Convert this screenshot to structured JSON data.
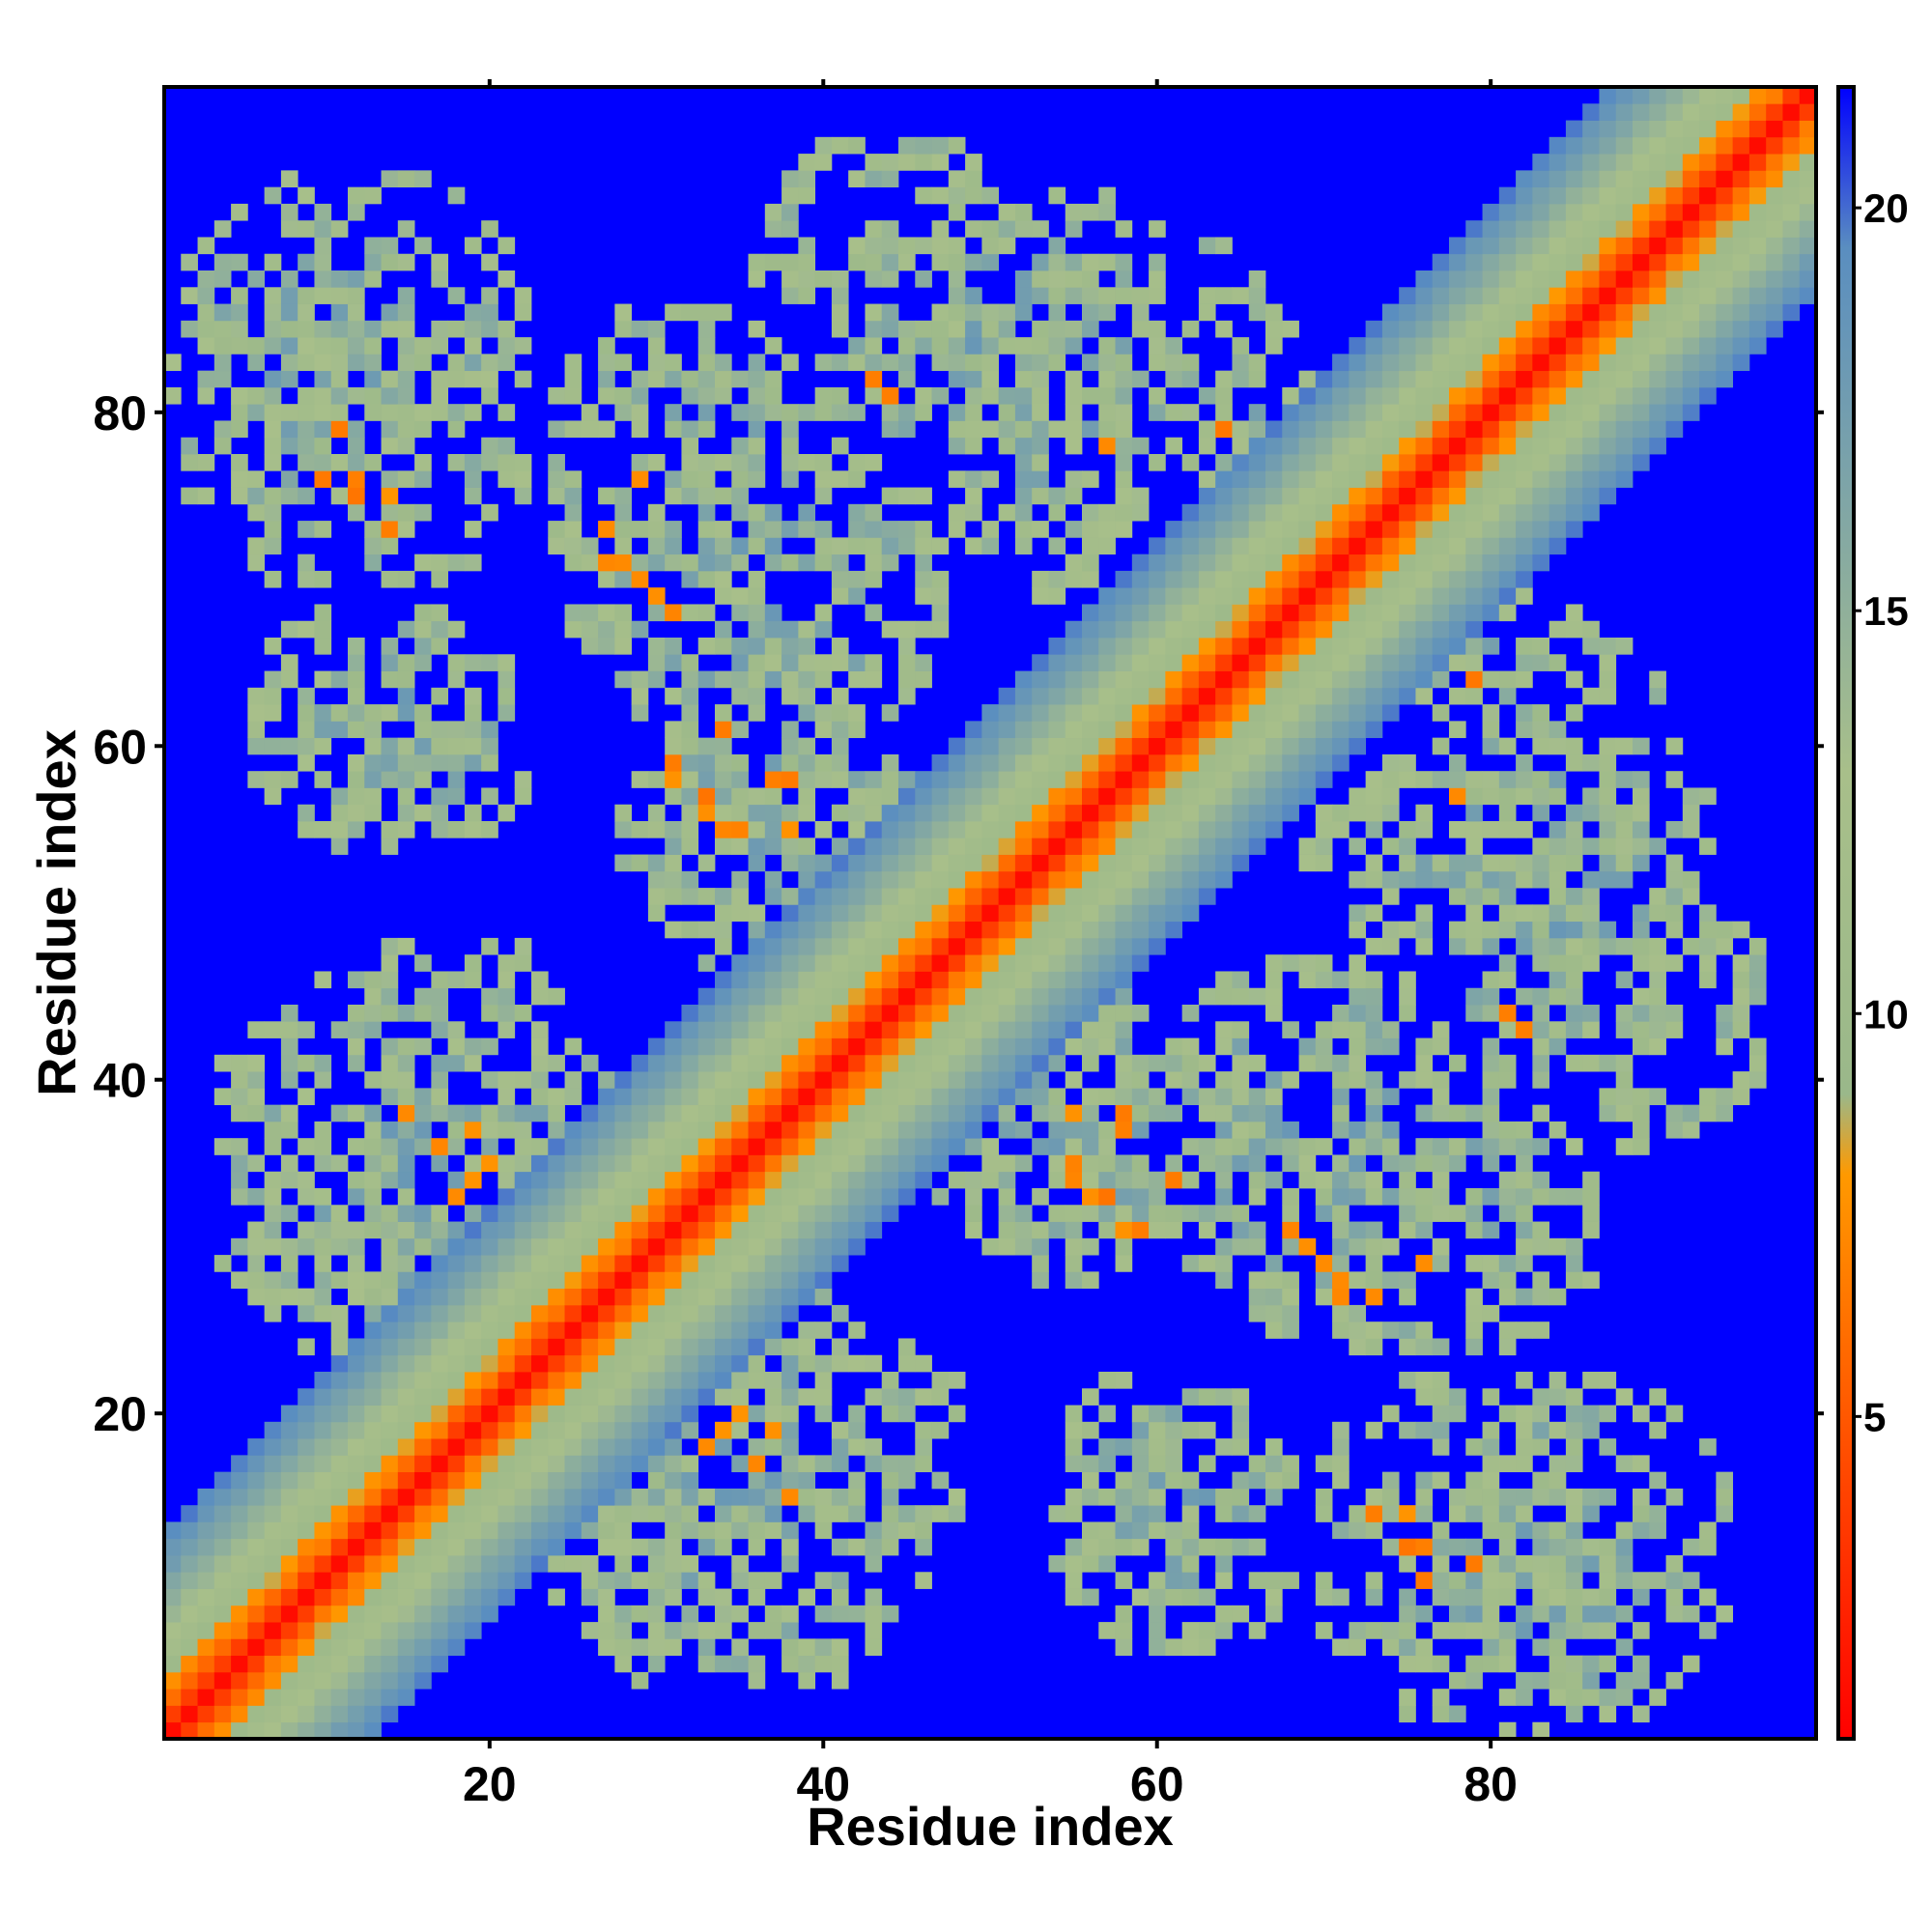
{
  "chart_data": {
    "type": "heatmap",
    "title": "",
    "xlabel": "Residue index",
    "ylabel": "Residue index",
    "n_residues": 99,
    "xlim": [
      1,
      99
    ],
    "ylim": [
      1,
      99
    ],
    "x_ticks": [
      20,
      40,
      60,
      80
    ],
    "y_ticks": [
      20,
      40,
      60,
      80
    ],
    "grid": false,
    "legend": "colorbar-right",
    "colorbar": {
      "range": [
        1,
        21.5
      ],
      "ticks": [
        5,
        10,
        15,
        20
      ],
      "stops": [
        {
          "value": 1,
          "color": "#ff0000"
        },
        {
          "value": 8,
          "color": "#ff9900"
        },
        {
          "value": 9,
          "color": "#9ab88a"
        },
        {
          "value": 13,
          "color": "#a8bf8a"
        },
        {
          "value": 19.5,
          "color": "#5a8ec0"
        },
        {
          "value": 21.5,
          "color": "#0000ff"
        }
      ],
      "background_color": "#0000ff"
    },
    "features": {
      "diagonal_band_halfwidth": 12,
      "clusters": [
        {
          "x": [
            1,
            18
          ],
          "y": [
            72,
            92
          ]
        },
        {
          "x": [
            26,
            47
          ],
          "y": [
            60,
            78
          ]
        },
        {
          "x": [
            40,
            62
          ],
          "y": [
            72,
            93
          ]
        },
        {
          "x": [
            57,
            70
          ],
          "y": [
            70,
            84
          ]
        },
        {
          "x": [
            28,
            48
          ],
          "y": [
            48,
            64
          ]
        },
        {
          "x": [
            4,
            28
          ],
          "y": [
            24,
            46
          ]
        },
        {
          "x": [
            20,
            48
          ],
          "y": [
            10,
            26
          ]
        },
        {
          "x": [
            46,
            70
          ],
          "y": [
            28,
            48
          ]
        },
        {
          "x": [
            64,
            86
          ],
          "y": [
            24,
            40
          ]
        },
        {
          "x": [
            78,
            96
          ],
          "y": [
            36,
            52
          ]
        },
        {
          "x": [
            66,
            90
          ],
          "y": [
            52,
            68
          ]
        },
        {
          "x": [
            70,
            94
          ],
          "y": [
            2,
            22
          ]
        },
        {
          "x": [
            54,
            68
          ],
          "y": [
            6,
            22
          ]
        }
      ],
      "contact_points": [
        [
          12,
          76
        ],
        [
          14,
          75
        ],
        [
          16,
          72
        ],
        [
          27,
          71
        ],
        [
          29,
          70
        ],
        [
          31,
          68
        ],
        [
          43,
          82
        ],
        [
          57,
          78
        ],
        [
          62,
          76
        ],
        [
          64,
          74
        ],
        [
          66,
          74
        ],
        [
          70,
          73
        ],
        [
          72,
          71
        ],
        [
          73,
          70
        ],
        [
          31,
          58
        ],
        [
          33,
          56
        ],
        [
          35,
          55
        ],
        [
          37,
          58
        ],
        [
          38,
          55
        ],
        [
          15,
          38
        ],
        [
          17,
          36
        ],
        [
          18,
          33
        ],
        [
          19,
          29
        ],
        [
          21,
          29
        ],
        [
          22,
          25
        ],
        [
          25,
          24
        ],
        [
          27,
          20
        ],
        [
          30,
          19
        ],
        [
          34,
          19
        ],
        [
          35,
          20
        ],
        [
          37,
          19
        ],
        [
          55,
          34
        ],
        [
          57,
          33
        ],
        [
          58,
          38
        ],
        [
          59,
          31
        ],
        [
          61,
          34
        ],
        [
          69,
          30
        ],
        [
          71,
          28
        ],
        [
          73,
          27
        ],
        [
          76,
          29
        ],
        [
          81,
          44
        ],
        [
          74,
          67
        ],
        [
          76,
          66
        ],
        [
          79,
          64
        ],
        [
          62,
          69
        ],
        [
          66,
          67
        ],
        [
          73,
          14
        ],
        [
          75,
          12
        ],
        [
          76,
          10
        ],
        [
          79,
          11
        ]
      ]
    }
  }
}
